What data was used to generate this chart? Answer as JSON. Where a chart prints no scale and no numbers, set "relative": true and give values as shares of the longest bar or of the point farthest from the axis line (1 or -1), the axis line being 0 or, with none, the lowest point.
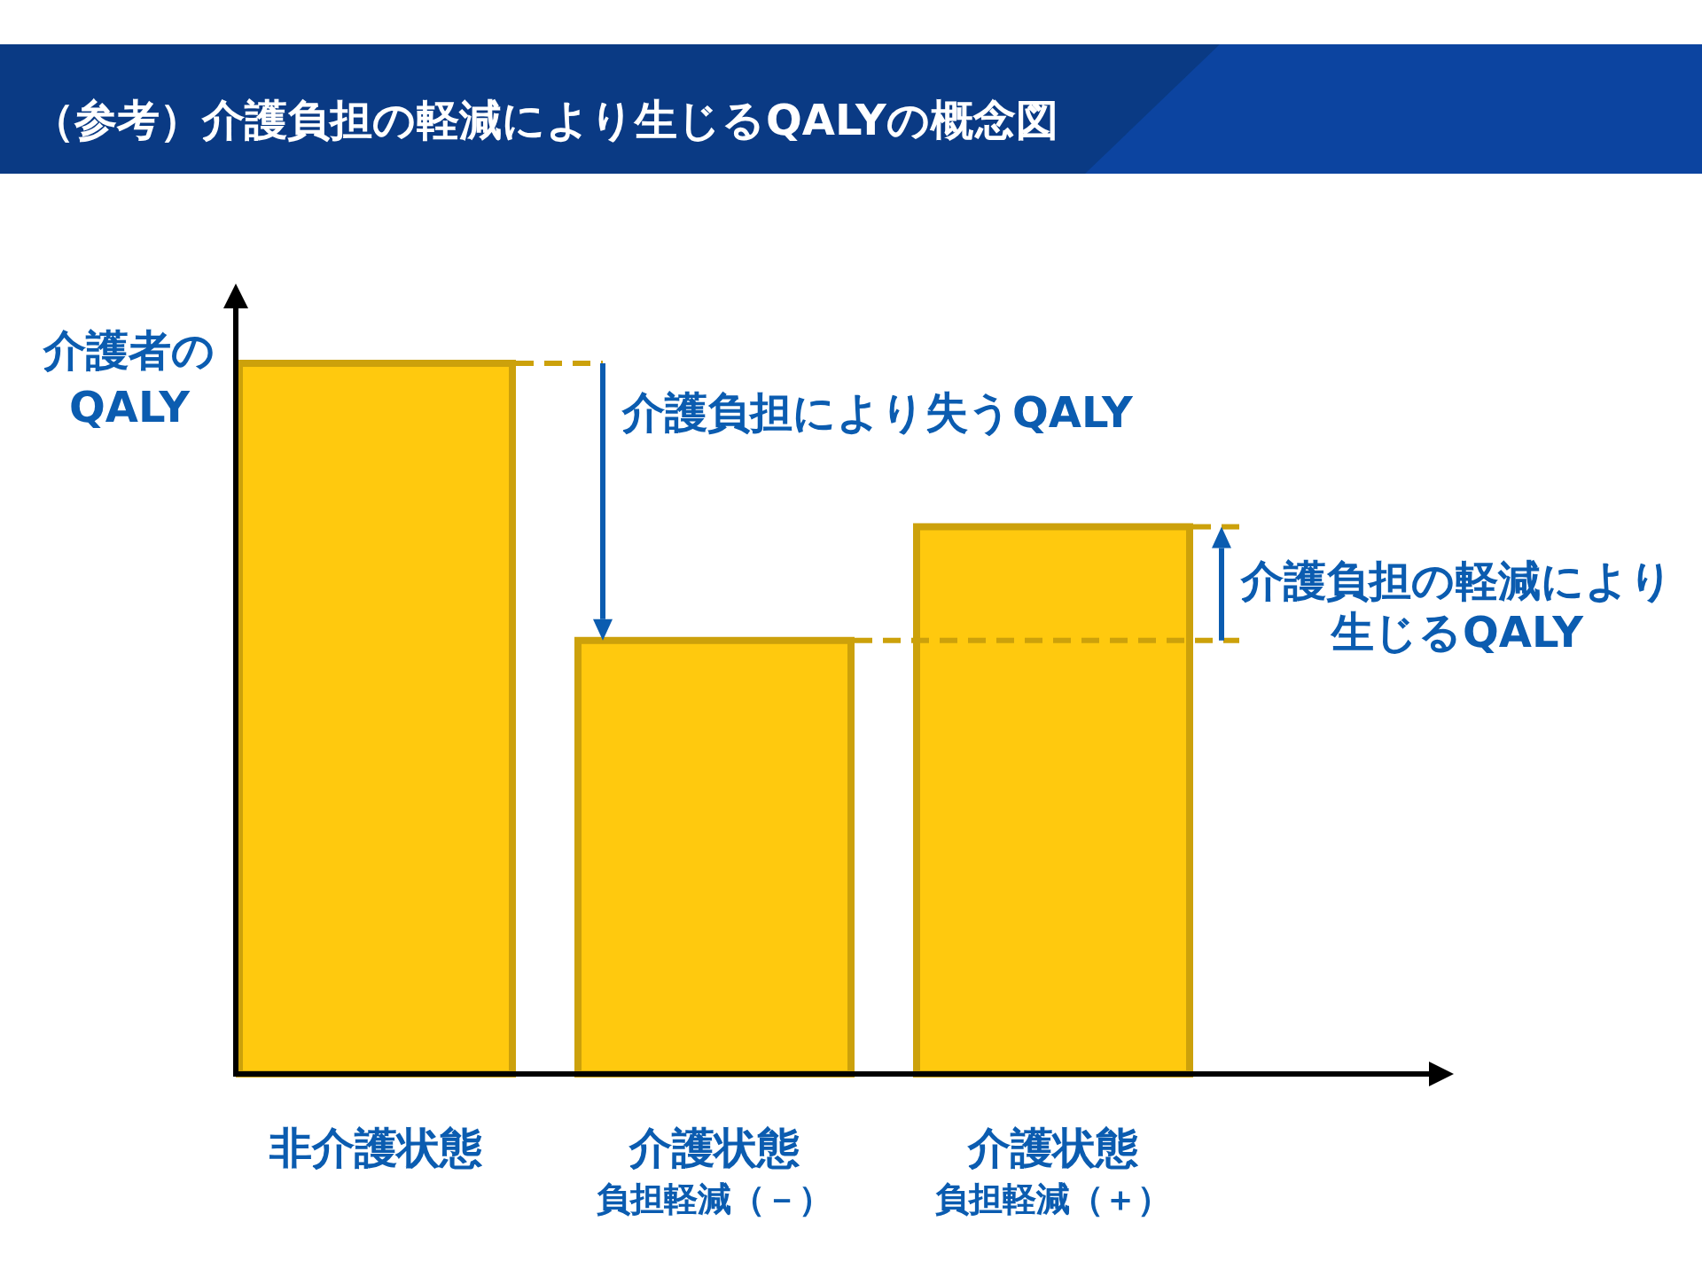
{
  "chart_data": {
    "type": "bar",
    "title": "（参考）介護負担の軽減により生じるQALYの概念図",
    "ylabel": "介護者の\nQALY",
    "categories": [
      "非介護状態",
      "介護状態$_{負担軽減（－）}$",
      "介護状態$_{負担軽減（＋）}$"
    ],
    "values": [
      1,
      0.61,
      0.77
    ],
    "color": "#ffc90e",
    "relative": true,
    "annotations": [
      "介護負担により失うQALY",
      "介護負担の軽減により生じるQALY"
    ]
  }
}
